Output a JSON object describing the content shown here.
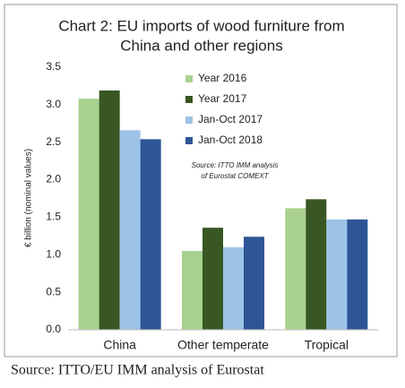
{
  "chart_data": {
    "type": "bar",
    "title": [
      "Chart 2: EU imports of wood furniture from",
      "China and other regions"
    ],
    "y_label": "€ billion (nominal values)",
    "annotation": [
      "Source: ITTO IMM analysis",
      "of Eurostat COMEXT"
    ],
    "caption": "Source: ITTO/EU IMM analysis of Eurostat",
    "categories": [
      "China",
      "Other temperate",
      "Tropical"
    ],
    "series": [
      {
        "name": "Year 2016",
        "color": "#a9d18e",
        "values": [
          3.08,
          1.05,
          1.62
        ]
      },
      {
        "name": "Year 2017",
        "color": "#385723",
        "values": [
          3.19,
          1.36,
          1.74
        ]
      },
      {
        "name": "Jan-Oct 2017",
        "color": "#9dc3e6",
        "values": [
          2.66,
          1.1,
          1.47
        ]
      },
      {
        "name": "Jan-Oct 2018",
        "color": "#2f5597",
        "values": [
          2.54,
          1.24,
          1.47
        ]
      }
    ],
    "ylim": [
      0,
      3.5
    ],
    "yticks": [
      {
        "value": 0,
        "label": "0.0"
      },
      0.5,
      {
        "value": 1,
        "label": "1.0"
      },
      1.5,
      {
        "value": 2,
        "label": "2.0"
      },
      2.5,
      {
        "value": 3,
        "label": "3.0"
      },
      3.5
    ],
    "grid": false,
    "legend": "top-center"
  }
}
